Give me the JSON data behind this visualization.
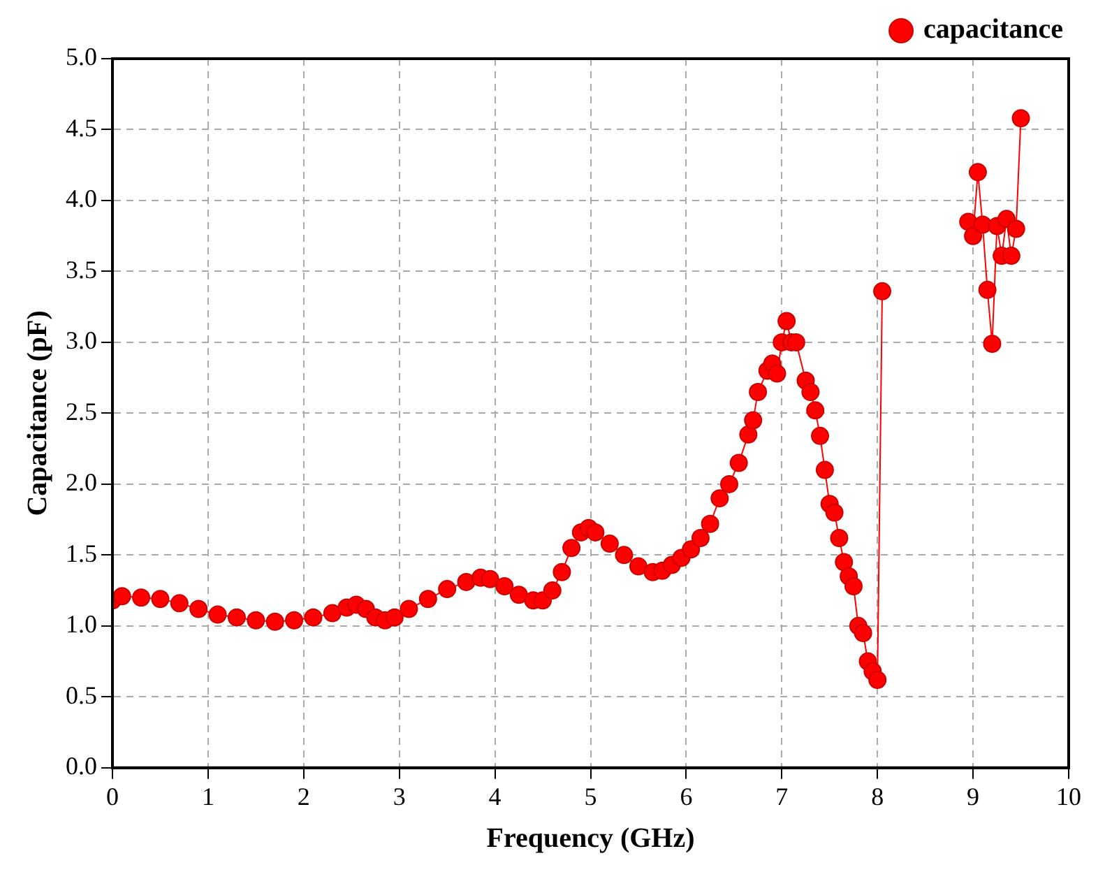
{
  "chart_data": {
    "type": "line",
    "xlabel": "Frequency (GHz)",
    "ylabel": "Capacitance (pF)",
    "x": [
      0,
      0.1,
      0.3,
      0.5,
      0.7,
      0.9,
      1.1,
      1.3,
      1.5,
      1.7,
      1.9,
      2.1,
      2.3,
      2.45,
      2.55,
      2.65,
      2.75,
      2.85,
      2.95,
      3.1,
      3.3,
      3.5,
      3.7,
      3.85,
      3.95,
      4.1,
      4.25,
      4.4,
      4.5,
      4.6,
      4.7,
      4.8,
      4.9,
      4.98,
      5.05,
      5.2,
      5.35,
      5.5,
      5.65,
      5.75,
      5.85,
      5.95,
      6.05,
      6.15,
      6.25,
      6.35,
      6.45,
      6.55,
      6.65,
      6.7,
      6.75,
      6.85,
      6.9,
      6.95,
      7,
      7.05,
      7.1,
      7.15,
      7.25,
      7.3,
      7.35,
      7.4,
      7.45,
      7.5,
      7.55,
      7.6,
      7.65,
      7.7,
      7.75,
      7.8,
      7.85,
      7.9,
      7.95,
      8,
      8.05,
      8.5,
      8.95,
      9,
      9.05,
      9.1,
      9.15,
      9.2,
      9.25,
      9.3,
      9.35,
      9.4,
      9.45,
      9.5
    ],
    "series": [
      {
        "name": "capacitance",
        "color": "#ff0000",
        "values": [
          1.18,
          1.21,
          1.2,
          1.19,
          1.16,
          1.12,
          1.08,
          1.06,
          1.04,
          1.03,
          1.04,
          1.06,
          1.09,
          1.13,
          1.15,
          1.12,
          1.06,
          1.04,
          1.06,
          1.12,
          1.19,
          1.26,
          1.31,
          1.34,
          1.33,
          1.28,
          1.22,
          1.18,
          1.18,
          1.25,
          1.38,
          1.55,
          1.66,
          1.69,
          1.66,
          1.58,
          1.5,
          1.42,
          1.38,
          1.39,
          1.43,
          1.48,
          1.54,
          1.62,
          1.72,
          1.9,
          2,
          2.15,
          2.35,
          2.45,
          2.65,
          2.8,
          2.85,
          2.78,
          3,
          3.15,
          3,
          3,
          2.73,
          2.65,
          2.52,
          2.34,
          2.1,
          1.86,
          1.8,
          1.62,
          1.45,
          1.35,
          1.28,
          1,
          0.95,
          0.75,
          0.68,
          0.62,
          3.36,
          null,
          3.85,
          3.75,
          4.2,
          3.83,
          3.37,
          2.99,
          3.82,
          3.61,
          3.87,
          3.61,
          3.8,
          4.58
        ]
      }
    ],
    "xlim": [
      0,
      10
    ],
    "xticks": [
      0,
      1,
      2,
      3,
      4,
      5,
      6,
      7,
      8,
      9,
      10
    ],
    "ylim": [
      0,
      5
    ],
    "yticks": [
      {
        "value": 0,
        "label": "0.0"
      },
      {
        "value": 0.5,
        "label": "0.5"
      },
      {
        "value": 1,
        "label": "1.0"
      },
      {
        "value": 1.5,
        "label": "1.5"
      },
      {
        "value": 2,
        "label": "2.0"
      },
      {
        "value": 2.5,
        "label": "2.5"
      },
      {
        "value": 3,
        "label": "3.0"
      },
      {
        "value": 3.5,
        "label": "3.5"
      },
      {
        "value": 4,
        "label": "4.0"
      },
      {
        "value": 4.5,
        "label": "4.5"
      },
      {
        "value": 5,
        "label": "5.0"
      }
    ],
    "grid": true,
    "legend": "top right",
    "marker": "circle",
    "line_style": "solid"
  }
}
